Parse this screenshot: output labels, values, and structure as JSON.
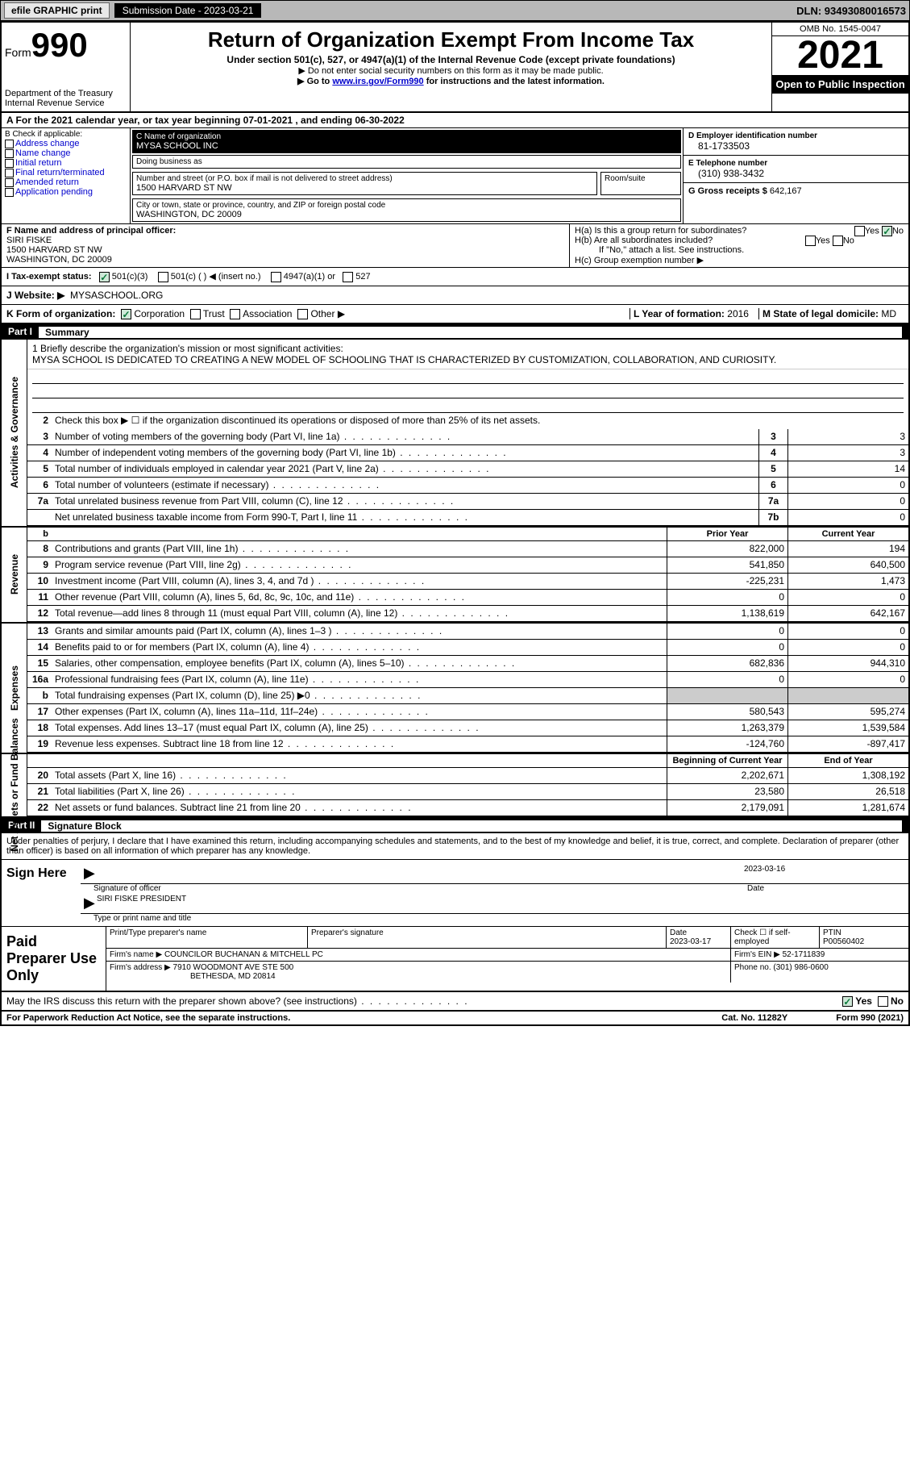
{
  "topbar": {
    "efile": "efile GRAPHIC print",
    "submission_label": "Submission Date - 2023-03-21",
    "dln": "DLN: 93493080016573"
  },
  "header": {
    "form_word": "Form",
    "form_no": "990",
    "dept": "Department of the Treasury",
    "irs": "Internal Revenue Service",
    "title": "Return of Organization Exempt From Income Tax",
    "subtitle": "Under section 501(c), 527, or 4947(a)(1) of the Internal Revenue Code (except private foundations)",
    "warn": "▶ Do not enter social security numbers on this form as it may be made public.",
    "goto_pre": "▶ Go to ",
    "goto_link": "www.irs.gov/Form990",
    "goto_post": " for instructions and the latest information.",
    "omb": "OMB No. 1545-0047",
    "year": "2021",
    "inspect": "Open to Public Inspection"
  },
  "row_a": "A For the 2021 calendar year, or tax year beginning 07-01-2021    , and ending 06-30-2022",
  "box_b": {
    "title": "B Check if applicable:",
    "items": [
      "Address change",
      "Name change",
      "Initial return",
      "Final return/terminated",
      "Amended return",
      "Application pending"
    ]
  },
  "box_c": {
    "name_lbl": "C Name of organization",
    "name": "MYSA SCHOOL INC",
    "dba_lbl": "Doing business as",
    "dba": "",
    "street_lbl": "Number and street (or P.O. box if mail is not delivered to street address)",
    "room_lbl": "Room/suite",
    "street": "1500 HARVARD ST NW",
    "city_lbl": "City or town, state or province, country, and ZIP or foreign postal code",
    "city": "WASHINGTON, DC  20009"
  },
  "box_d": {
    "lbl": "D Employer identification number",
    "val": "81-1733503"
  },
  "box_e": {
    "lbl": "E Telephone number",
    "val": "(310) 938-3432"
  },
  "box_g": {
    "lbl": "G Gross receipts $",
    "val": "642,167"
  },
  "box_f": {
    "lbl": "F Name and address of principal officer:",
    "name": "SIRI FISKE",
    "street": "1500 HARVARD ST NW",
    "city": "WASHINGTON, DC  20009"
  },
  "box_h": {
    "a": "H(a)  Is this a group return for subordinates?",
    "b": "H(b)  Are all subordinates included?",
    "note": "If \"No,\" attach a list. See instructions.",
    "c": "H(c)  Group exemption number ▶",
    "yes": "Yes",
    "no": "No"
  },
  "row_i": {
    "lbl": "I   Tax-exempt status:",
    "opts": [
      "501(c)(3)",
      "501(c) (  ) ◀ (insert no.)",
      "4947(a)(1) or",
      "527"
    ]
  },
  "row_j": {
    "lbl": "J   Website: ▶",
    "val": "MYSASCHOOL.ORG"
  },
  "row_k": {
    "lbl": "K Form of organization:",
    "opts": [
      "Corporation",
      "Trust",
      "Association",
      "Other ▶"
    ],
    "l_lbl": "L Year of formation:",
    "l_val": "2016",
    "m_lbl": "M State of legal domicile:",
    "m_val": "MD"
  },
  "parts": {
    "p1": "Part I",
    "p1t": "Summary",
    "p2": "Part II",
    "p2t": "Signature Block"
  },
  "mission": {
    "lead": "1   Briefly describe the organization's mission or most significant activities:",
    "text": "MYSA SCHOOL IS DEDICATED TO CREATING A NEW MODEL OF SCHOOLING THAT IS CHARACTERIZED BY CUSTOMIZATION, COLLABORATION, AND CURIOSITY."
  },
  "line2": "Check this box ▶ ☐  if the organization discontinued its operations or disposed of more than 25% of its net assets.",
  "gov_rows": [
    {
      "n": "3",
      "label": "Number of voting members of the governing body (Part VI, line 1a)",
      "box": "3",
      "val": "3"
    },
    {
      "n": "4",
      "label": "Number of independent voting members of the governing body (Part VI, line 1b)",
      "box": "4",
      "val": "3"
    },
    {
      "n": "5",
      "label": "Total number of individuals employed in calendar year 2021 (Part V, line 2a)",
      "box": "5",
      "val": "14"
    },
    {
      "n": "6",
      "label": "Total number of volunteers (estimate if necessary)",
      "box": "6",
      "val": "0"
    },
    {
      "n": "7a",
      "label": "Total unrelated business revenue from Part VIII, column (C), line 12",
      "box": "7a",
      "val": "0"
    },
    {
      "n": "",
      "label": "Net unrelated business taxable income from Form 990-T, Part I, line 11",
      "box": "7b",
      "val": "0"
    }
  ],
  "rev_hdr": {
    "b": "b",
    "py": "Prior Year",
    "cy": "Current Year"
  },
  "rev_rows": [
    {
      "n": "8",
      "label": "Contributions and grants (Part VIII, line 1h)",
      "py": "822,000",
      "cy": "194"
    },
    {
      "n": "9",
      "label": "Program service revenue (Part VIII, line 2g)",
      "py": "541,850",
      "cy": "640,500"
    },
    {
      "n": "10",
      "label": "Investment income (Part VIII, column (A), lines 3, 4, and 7d )",
      "py": "-225,231",
      "cy": "1,473"
    },
    {
      "n": "11",
      "label": "Other revenue (Part VIII, column (A), lines 5, 6d, 8c, 9c, 10c, and 11e)",
      "py": "0",
      "cy": "0"
    },
    {
      "n": "12",
      "label": "Total revenue—add lines 8 through 11 (must equal Part VIII, column (A), line 12)",
      "py": "1,138,619",
      "cy": "642,167"
    }
  ],
  "exp_rows": [
    {
      "n": "13",
      "label": "Grants and similar amounts paid (Part IX, column (A), lines 1–3 )",
      "py": "0",
      "cy": "0"
    },
    {
      "n": "14",
      "label": "Benefits paid to or for members (Part IX, column (A), line 4)",
      "py": "0",
      "cy": "0"
    },
    {
      "n": "15",
      "label": "Salaries, other compensation, employee benefits (Part IX, column (A), lines 5–10)",
      "py": "682,836",
      "cy": "944,310"
    },
    {
      "n": "16a",
      "label": "Professional fundraising fees (Part IX, column (A), line 11e)",
      "py": "0",
      "cy": "0"
    },
    {
      "n": "b",
      "label": "Total fundraising expenses (Part IX, column (D), line 25) ▶0",
      "py": "",
      "cy": "",
      "gray": true
    },
    {
      "n": "17",
      "label": "Other expenses (Part IX, column (A), lines 11a–11d, 11f–24e)",
      "py": "580,543",
      "cy": "595,274"
    },
    {
      "n": "18",
      "label": "Total expenses. Add lines 13–17 (must equal Part IX, column (A), line 25)",
      "py": "1,263,379",
      "cy": "1,539,584"
    },
    {
      "n": "19",
      "label": "Revenue less expenses. Subtract line 18 from line 12",
      "py": "-124,760",
      "cy": "-897,417"
    }
  ],
  "na_hdr": {
    "by": "Beginning of Current Year",
    "ey": "End of Year"
  },
  "na_rows": [
    {
      "n": "20",
      "label": "Total assets (Part X, line 16)",
      "py": "2,202,671",
      "cy": "1,308,192"
    },
    {
      "n": "21",
      "label": "Total liabilities (Part X, line 26)",
      "py": "23,580",
      "cy": "26,518"
    },
    {
      "n": "22",
      "label": "Net assets or fund balances. Subtract line 21 from line 20",
      "py": "2,179,091",
      "cy": "1,281,674"
    }
  ],
  "tabs": {
    "gov": "Activities & Governance",
    "rev": "Revenue",
    "exp": "Expenses",
    "na": "Net Assets or Fund Balances"
  },
  "sig_intro": "Under penalties of perjury, I declare that I have examined this return, including accompanying schedules and statements, and to the best of my knowledge and belief, it is true, correct, and complete. Declaration of preparer (other than officer) is based on all information of which preparer has any knowledge.",
  "sign": {
    "here": "Sign Here",
    "sig_lbl": "Signature of officer",
    "date": "2023-03-16",
    "date_lbl": "Date",
    "name": "SIRI FISKE  PRESIDENT",
    "name_lbl": "Type or print name and title"
  },
  "prep": {
    "title": "Paid Preparer Use Only",
    "h_name": "Print/Type preparer's name",
    "h_sig": "Preparer's signature",
    "h_date": "Date",
    "date": "2023-03-17",
    "h_check": "Check ☐ if self-employed",
    "h_ptin": "PTIN",
    "ptin": "P00560402",
    "firm_lbl": "Firm's name    ▶",
    "firm": "COUNCILOR BUCHANAN & MITCHELL PC",
    "ein_lbl": "Firm's EIN ▶",
    "ein": "52-1711839",
    "addr_lbl": "Firm's address ▶",
    "addr1": "7910 WOODMONT AVE STE 500",
    "addr2": "BETHESDA, MD  20814",
    "phone_lbl": "Phone no.",
    "phone": "(301) 986-0600"
  },
  "footer_q": "May the IRS discuss this return with the preparer shown above? (see instructions)",
  "footer": {
    "left": "For Paperwork Reduction Act Notice, see the separate instructions.",
    "mid": "Cat. No. 11282Y",
    "right": "Form 990 (2021)"
  },
  "yes": "Yes",
  "no": "No"
}
